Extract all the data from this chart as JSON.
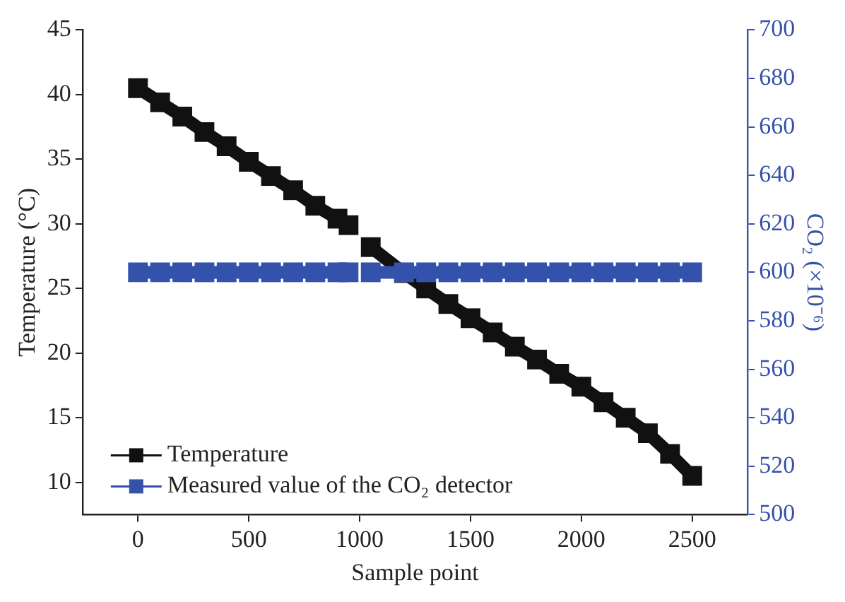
{
  "chart_data": {
    "type": "line",
    "xlabel": "Sample point",
    "ylabel": "Temperature (°C)",
    "y2label": "CO₂ (×10⁻⁶)",
    "xlim": [
      -250,
      2750
    ],
    "xticks": [
      0,
      500,
      1000,
      1500,
      2000,
      2500
    ],
    "ylim": [
      7.5,
      45
    ],
    "yticks": [
      10,
      15,
      20,
      25,
      30,
      35,
      40,
      45
    ],
    "y2lim": [
      500,
      700
    ],
    "y2ticks": [
      500,
      520,
      540,
      560,
      580,
      600,
      620,
      640,
      660,
      680,
      700
    ],
    "grid": false,
    "legend": "bottom left",
    "marker": "square",
    "line_style": "solid",
    "series": [
      {
        "name": "Temperature",
        "color": "#111111",
        "x": [
          0,
          100,
          200,
          300,
          400,
          500,
          600,
          700,
          800,
          900,
          950,
          1000,
          1050,
          1200,
          1300,
          1400,
          1500,
          1600,
          1700,
          1800,
          1900,
          2000,
          2100,
          2200,
          2300,
          2400,
          2500
        ],
        "values": [
          40.5,
          39.4,
          38.3,
          37.1,
          36,
          34.8,
          33.7,
          32.6,
          31.4,
          30.4,
          29.9,
          null,
          28.2,
          26.2,
          25,
          23.8,
          22.7,
          21.6,
          20.5,
          19.5,
          18.4,
          17.4,
          16.2,
          15,
          13.8,
          12.2,
          10.5
        ]
      },
      {
        "name": "Measured value of the CO₂ detector",
        "color": "#3451ab",
        "axis": "y2",
        "x": [
          0,
          100,
          200,
          300,
          400,
          500,
          600,
          700,
          800,
          900,
          950,
          1000,
          1050,
          1200,
          1300,
          1400,
          1500,
          1600,
          1700,
          1800,
          1900,
          2000,
          2100,
          2200,
          2300,
          2400,
          2500
        ],
        "values": [
          600,
          600,
          600,
          600,
          600,
          600,
          600,
          600,
          600,
          600,
          600,
          null,
          600,
          600,
          600,
          600,
          600,
          600,
          600,
          600,
          600,
          600,
          600,
          600,
          600,
          600,
          600
        ]
      }
    ]
  }
}
